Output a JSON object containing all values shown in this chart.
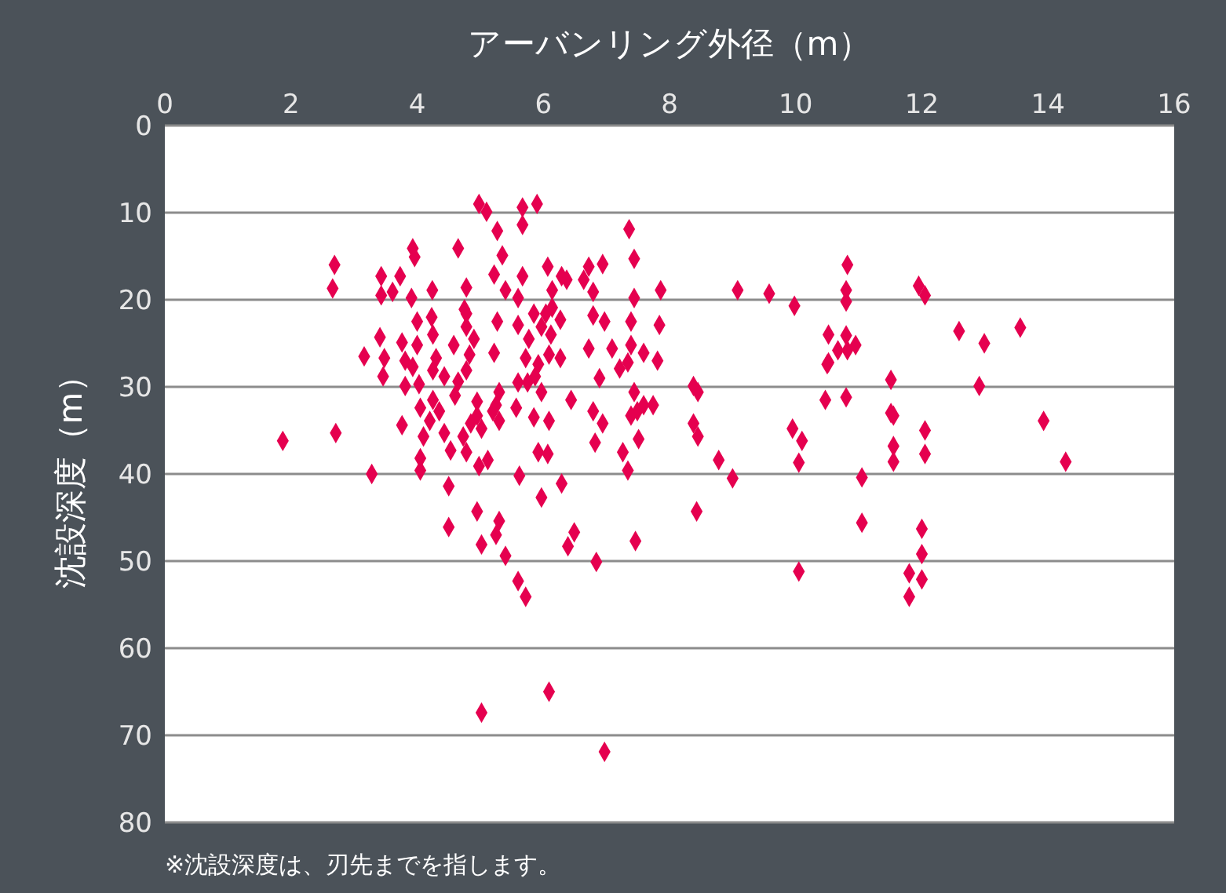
{
  "chart_data": {
    "type": "scatter",
    "xlabel": "アーバンリング外径（m）",
    "ylabel": "沈設深度（m）",
    "annotations": [
      "※沈設深度は、刃先までを指します。"
    ],
    "xlim": [
      0,
      16
    ],
    "xticks": [
      0,
      2,
      4,
      6,
      8,
      10,
      12,
      14,
      16
    ],
    "ylim": [
      80,
      0
    ],
    "yticks": [
      0,
      10,
      20,
      30,
      40,
      50,
      60,
      70,
      80
    ],
    "grid": "y",
    "marker": "diamond",
    "series": [
      {
        "color": "#e5004f",
        "x": [
          1.87,
          2.69,
          2.66,
          2.71,
          3.28,
          3.16,
          3.43,
          3.43,
          3.73,
          3.61,
          3.41,
          3.48,
          3.46,
          3.76,
          3.81,
          3.81,
          3.76,
          3.93,
          3.96,
          3.91,
          4.0,
          4.0,
          3.93,
          4.03,
          4.05,
          4.05,
          4.05,
          4.1,
          4.24,
          4.23,
          4.25,
          4.3,
          4.25,
          4.43,
          4.25,
          4.2,
          4.35,
          4.43,
          4.53,
          4.5,
          4.5,
          4.58,
          4.6,
          4.65,
          4.78,
          4.78,
          4.78,
          4.75,
          4.78,
          4.83,
          4.9,
          4.85,
          4.78,
          4.73,
          4.65,
          4.98,
          4.95,
          4.95,
          5.02,
          4.98,
          5.12,
          5.02,
          4.95,
          5.02,
          5.1,
          5.27,
          5.22,
          5.35,
          5.4,
          5.27,
          5.22,
          5.3,
          5.25,
          5.2,
          5.3,
          5.3,
          5.25,
          5.4,
          5.67,
          5.67,
          5.67,
          5.6,
          5.6,
          5.77,
          5.72,
          5.75,
          5.6,
          5.57,
          5.62,
          5.6,
          5.72,
          5.9,
          5.85,
          5.97,
          5.92,
          5.87,
          5.97,
          5.85,
          5.92,
          5.97,
          6.07,
          6.14,
          6.14,
          6.04,
          6.12,
          6.09,
          6.27,
          6.27,
          6.29,
          6.37,
          6.44,
          6.09,
          6.07,
          6.29,
          6.39,
          6.49,
          6.09,
          6.72,
          6.79,
          6.79,
          6.97,
          6.72,
          6.89,
          6.79,
          6.82,
          6.94,
          6.84,
          6.97,
          6.94,
          6.64,
          7.09,
          7.21,
          7.34,
          7.26,
          7.36,
          7.44,
          7.44,
          7.39,
          7.39,
          7.34,
          7.44,
          7.49,
          7.39,
          7.46,
          7.51,
          7.59,
          7.74,
          7.81,
          7.86,
          7.84,
          7.59,
          8.38,
          8.45,
          8.38,
          8.45,
          8.43,
          8.78,
          9.0,
          9.08,
          9.58,
          9.98,
          10.52,
          10.5,
          10.47,
          9.95,
          10.1,
          10.05,
          10.05,
          10.82,
          10.8,
          10.8,
          10.8,
          10.82,
          10.95,
          10.67,
          10.52,
          10.8,
          11.05,
          11.05,
          11.51,
          11.51,
          11.55,
          11.55,
          11.55,
          11.95,
          12.05,
          12.05,
          12.05,
          12.0,
          12.0,
          11.8,
          12.0,
          11.8,
          12.59,
          12.99,
          12.91,
          13.56,
          13.93,
          14.28
        ],
        "values": [
          36.2,
          16.0,
          18.7,
          35.3,
          40.0,
          26.5,
          17.3,
          19.5,
          17.3,
          19.1,
          24.3,
          26.7,
          28.8,
          24.9,
          27.0,
          29.9,
          34.4,
          14.1,
          15.1,
          19.8,
          22.5,
          25.2,
          27.7,
          29.7,
          32.4,
          38.2,
          39.6,
          35.7,
          18.9,
          22.0,
          24.0,
          26.7,
          28.1,
          28.8,
          31.5,
          33.9,
          32.8,
          35.3,
          37.3,
          41.4,
          46.1,
          25.2,
          31.0,
          29.4,
          28.1,
          21.6,
          18.6,
          21.1,
          23.1,
          26.3,
          24.5,
          34.2,
          37.5,
          35.7,
          14.1,
          9.0,
          33.3,
          31.7,
          34.8,
          39.1,
          38.4,
          48.1,
          44.3,
          67.4,
          9.9,
          12.1,
          17.1,
          14.9,
          18.9,
          22.5,
          26.1,
          30.6,
          32.1,
          32.8,
          33.9,
          45.4,
          47.0,
          49.4,
          9.4,
          11.4,
          17.3,
          19.8,
          22.9,
          24.5,
          26.7,
          29.5,
          29.5,
          32.4,
          40.2,
          52.3,
          54.1,
          9.0,
          21.6,
          23.1,
          27.4,
          28.8,
          30.6,
          33.5,
          37.5,
          42.7,
          16.2,
          18.9,
          20.9,
          21.6,
          24.0,
          26.3,
          22.3,
          26.7,
          17.3,
          17.7,
          31.5,
          33.9,
          37.7,
          41.1,
          48.3,
          46.7,
          65.0,
          16.2,
          19.1,
          21.8,
          22.5,
          25.6,
          29.0,
          32.8,
          36.4,
          34.2,
          50.1,
          71.9,
          15.9,
          17.7,
          25.6,
          27.9,
          39.6,
          37.5,
          11.9,
          15.3,
          19.8,
          22.5,
          25.2,
          27.2,
          30.6,
          32.8,
          33.3,
          47.7,
          36.0,
          32.1,
          32.1,
          27.0,
          18.9,
          22.9,
          26.1,
          29.9,
          30.6,
          34.2,
          35.7,
          44.3,
          38.4,
          40.5,
          18.9,
          19.3,
          20.7,
          24.0,
          27.4,
          31.5,
          34.8,
          36.2,
          38.7,
          51.2,
          16.0,
          18.9,
          20.2,
          24.1,
          25.8,
          25.2,
          25.8,
          27.2,
          31.2,
          40.4,
          45.6,
          29.2,
          33.0,
          33.3,
          36.8,
          38.6,
          18.4,
          19.5,
          35.0,
          37.7,
          46.3,
          49.2,
          51.4,
          52.1,
          54.1,
          23.6,
          25.0,
          29.9,
          23.2,
          33.9,
          38.6
        ]
      }
    ]
  }
}
